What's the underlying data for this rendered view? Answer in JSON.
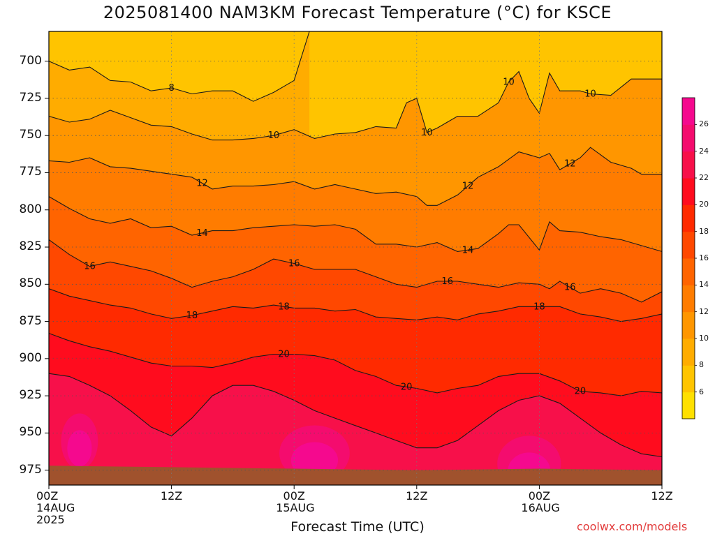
{
  "title": "2025081400 NAM3KM Forecast Temperature (°C) for KSCE",
  "credit": "coolwx.com/models",
  "chart_data": {
    "type": "heatmap",
    "title": "2025081400 NAM3KM Forecast Temperature (°C) for KSCE",
    "xlabel": "Forecast Time (UTC)",
    "ylabel": "",
    "x_range_hours": [
      0,
      60
    ],
    "y_range_hpa": [
      680,
      985
    ],
    "y_axis": "pressure (hPa), inverted",
    "grid": "dotted",
    "x_ticks": [
      {
        "hour": 0,
        "lines": [
          "00Z",
          "14AUG",
          "2025"
        ]
      },
      {
        "hour": 12,
        "lines": [
          "12Z"
        ]
      },
      {
        "hour": 24,
        "lines": [
          "00Z",
          "15AUG"
        ]
      },
      {
        "hour": 36,
        "lines": [
          "12Z"
        ]
      },
      {
        "hour": 48,
        "lines": [
          "00Z",
          "16AUG"
        ]
      },
      {
        "hour": 60,
        "lines": [
          "12Z"
        ]
      }
    ],
    "y_ticks": [
      {
        "value": 700,
        "label": "700"
      },
      {
        "value": 725,
        "label": "725"
      },
      {
        "value": 750,
        "label": "750"
      },
      {
        "value": 775,
        "label": "775"
      },
      {
        "value": 800,
        "label": "800"
      },
      {
        "value": 825,
        "label": "825"
      },
      {
        "value": 850,
        "label": "850"
      },
      {
        "value": 875,
        "label": "875"
      },
      {
        "value": 900,
        "label": "900"
      },
      {
        "value": 925,
        "label": "925"
      },
      {
        "value": 950,
        "label": "950"
      },
      {
        "value": 975,
        "label": "975"
      }
    ],
    "colorbar": {
      "levels": [
        4,
        6,
        8,
        10,
        12,
        14,
        16,
        18,
        20,
        22,
        24,
        26,
        28
      ],
      "labels": [
        "6",
        "8",
        "10",
        "12",
        "14",
        "16",
        "18",
        "20",
        "22",
        "24",
        "26"
      ],
      "colors": [
        "#ffe000",
        "#ffc400",
        "#ffac00",
        "#ff9600",
        "#ff7c00",
        "#ff6400",
        "#ff4800",
        "#ff2a00",
        "#ff0c1e",
        "#f7104a",
        "#f40c6e",
        "#f5098e"
      ]
    },
    "ground_color": "#a0522d",
    "isotherms": [
      {
        "value": 8,
        "labels": [
          {
            "label": "8",
            "hour": 12.0
          }
        ],
        "points": [
          [
            0,
            700
          ],
          [
            2,
            706
          ],
          [
            4,
            704
          ],
          [
            6,
            713
          ],
          [
            8,
            714
          ],
          [
            10,
            720
          ],
          [
            12,
            718
          ],
          [
            14,
            722
          ],
          [
            16,
            720
          ],
          [
            18,
            720
          ],
          [
            20,
            727
          ],
          [
            22,
            721
          ],
          [
            24,
            713
          ],
          [
            25.5,
            680
          ]
        ]
      },
      {
        "value": 10,
        "labels": [
          {
            "label": "10",
            "hour": 22.0
          },
          {
            "label": "10",
            "hour": 37.0
          },
          {
            "label": "10",
            "hour": 45.0
          },
          {
            "label": "10",
            "hour": 53.0
          }
        ],
        "points": [
          [
            0,
            737
          ],
          [
            2,
            741
          ],
          [
            4,
            739
          ],
          [
            6,
            733
          ],
          [
            8,
            738
          ],
          [
            10,
            743
          ],
          [
            12,
            744
          ],
          [
            14,
            749
          ],
          [
            16,
            753
          ],
          [
            18,
            753
          ],
          [
            20,
            752
          ],
          [
            22,
            750
          ],
          [
            24,
            746
          ],
          [
            26,
            752
          ],
          [
            28,
            749
          ],
          [
            30,
            748
          ],
          [
            32,
            744
          ],
          [
            34,
            745
          ],
          [
            35,
            728
          ],
          [
            36,
            725
          ],
          [
            37,
            748
          ],
          [
            38,
            745
          ],
          [
            40,
            737
          ],
          [
            42,
            737
          ],
          [
            44,
            728
          ],
          [
            45,
            714
          ],
          [
            46,
            707
          ],
          [
            47,
            725
          ],
          [
            48,
            735
          ],
          [
            49,
            708
          ],
          [
            50,
            720
          ],
          [
            52,
            720
          ],
          [
            53,
            722
          ],
          [
            55,
            723
          ],
          [
            57,
            712
          ],
          [
            60,
            712
          ]
        ]
      },
      {
        "value": 12,
        "labels": [
          {
            "label": "12",
            "hour": 15.0
          },
          {
            "label": "12",
            "hour": 41.0
          },
          {
            "label": "12",
            "hour": 51.0
          }
        ],
        "points": [
          [
            0,
            767
          ],
          [
            2,
            768
          ],
          [
            4,
            765
          ],
          [
            6,
            771
          ],
          [
            8,
            772
          ],
          [
            10,
            774
          ],
          [
            12,
            776
          ],
          [
            14,
            778
          ],
          [
            16,
            786
          ],
          [
            18,
            784
          ],
          [
            20,
            784
          ],
          [
            22,
            783
          ],
          [
            24,
            781
          ],
          [
            26,
            786
          ],
          [
            28,
            783
          ],
          [
            30,
            786
          ],
          [
            32,
            789
          ],
          [
            34,
            788
          ],
          [
            36,
            791
          ],
          [
            37,
            797
          ],
          [
            38,
            797
          ],
          [
            40,
            790
          ],
          [
            42,
            778
          ],
          [
            44,
            771
          ],
          [
            46,
            761
          ],
          [
            48,
            765
          ],
          [
            49,
            762
          ],
          [
            50,
            773
          ],
          [
            52,
            765
          ],
          [
            53,
            758
          ],
          [
            55,
            768
          ],
          [
            57,
            772
          ],
          [
            58,
            776
          ],
          [
            60,
            776
          ]
        ]
      },
      {
        "value": 14,
        "labels": [
          {
            "label": "14",
            "hour": 15.0
          },
          {
            "label": "14",
            "hour": 41.0
          }
        ],
        "points": [
          [
            0,
            791
          ],
          [
            2,
            799
          ],
          [
            4,
            806
          ],
          [
            6,
            809
          ],
          [
            8,
            806
          ],
          [
            10,
            812
          ],
          [
            12,
            811
          ],
          [
            14,
            817
          ],
          [
            16,
            814
          ],
          [
            18,
            814
          ],
          [
            20,
            812
          ],
          [
            22,
            811
          ],
          [
            24,
            810
          ],
          [
            26,
            811
          ],
          [
            28,
            810
          ],
          [
            30,
            813
          ],
          [
            32,
            823
          ],
          [
            34,
            823
          ],
          [
            36,
            825
          ],
          [
            38,
            822
          ],
          [
            40,
            828
          ],
          [
            42,
            826
          ],
          [
            44,
            816
          ],
          [
            45,
            810
          ],
          [
            46,
            810
          ],
          [
            48,
            827
          ],
          [
            49,
            808
          ],
          [
            50,
            814
          ],
          [
            52,
            815
          ],
          [
            54,
            818
          ],
          [
            56,
            820
          ],
          [
            58,
            824
          ],
          [
            60,
            828
          ]
        ]
      },
      {
        "value": 16,
        "labels": [
          {
            "label": "16",
            "hour": 4.0
          },
          {
            "label": "16",
            "hour": 24.0
          },
          {
            "label": "16",
            "hour": 39.0
          },
          {
            "label": "16",
            "hour": 51.0
          }
        ],
        "points": [
          [
            0,
            820
          ],
          [
            2,
            830
          ],
          [
            4,
            838
          ],
          [
            6,
            835
          ],
          [
            8,
            838
          ],
          [
            10,
            841
          ],
          [
            12,
            846
          ],
          [
            14,
            852
          ],
          [
            16,
            848
          ],
          [
            18,
            845
          ],
          [
            20,
            840
          ],
          [
            22,
            833
          ],
          [
            24,
            836
          ],
          [
            26,
            840
          ],
          [
            28,
            840
          ],
          [
            30,
            840
          ],
          [
            32,
            845
          ],
          [
            34,
            850
          ],
          [
            36,
            852
          ],
          [
            38,
            848
          ],
          [
            40,
            848
          ],
          [
            42,
            850
          ],
          [
            44,
            852
          ],
          [
            46,
            849
          ],
          [
            48,
            850
          ],
          [
            49,
            853
          ],
          [
            50,
            848
          ],
          [
            52,
            856
          ],
          [
            54,
            853
          ],
          [
            56,
            856
          ],
          [
            58,
            862
          ],
          [
            60,
            855
          ]
        ]
      },
      {
        "value": 18,
        "labels": [
          {
            "label": "18",
            "hour": 14.0
          },
          {
            "label": "18",
            "hour": 23.0
          },
          {
            "label": "18",
            "hour": 48.0
          }
        ],
        "points": [
          [
            0,
            853
          ],
          [
            2,
            858
          ],
          [
            4,
            861
          ],
          [
            6,
            864
          ],
          [
            8,
            866
          ],
          [
            10,
            870
          ],
          [
            12,
            873
          ],
          [
            14,
            871
          ],
          [
            16,
            868
          ],
          [
            18,
            865
          ],
          [
            20,
            866
          ],
          [
            22,
            864
          ],
          [
            24,
            866
          ],
          [
            26,
            866
          ],
          [
            28,
            868
          ],
          [
            30,
            867
          ],
          [
            32,
            872
          ],
          [
            34,
            873
          ],
          [
            36,
            874
          ],
          [
            38,
            872
          ],
          [
            40,
            874
          ],
          [
            42,
            870
          ],
          [
            44,
            868
          ],
          [
            46,
            865
          ],
          [
            48,
            865
          ],
          [
            50,
            865
          ],
          [
            52,
            870
          ],
          [
            54,
            872
          ],
          [
            56,
            875
          ],
          [
            58,
            873
          ],
          [
            60,
            870
          ]
        ]
      },
      {
        "value": 20,
        "labels": [
          {
            "label": "20",
            "hour": 23.0
          },
          {
            "label": "20",
            "hour": 35.0
          },
          {
            "label": "20",
            "hour": 52.0
          }
        ],
        "points": [
          [
            0,
            883
          ],
          [
            2,
            888
          ],
          [
            4,
            892
          ],
          [
            6,
            895
          ],
          [
            8,
            899
          ],
          [
            10,
            903
          ],
          [
            12,
            905
          ],
          [
            14,
            905
          ],
          [
            16,
            906
          ],
          [
            18,
            903
          ],
          [
            20,
            899
          ],
          [
            22,
            897
          ],
          [
            24,
            897
          ],
          [
            26,
            898
          ],
          [
            28,
            901
          ],
          [
            30,
            908
          ],
          [
            32,
            912
          ],
          [
            34,
            918
          ],
          [
            36,
            920
          ],
          [
            38,
            923
          ],
          [
            40,
            920
          ],
          [
            42,
            918
          ],
          [
            44,
            912
          ],
          [
            46,
            910
          ],
          [
            48,
            910
          ],
          [
            50,
            915
          ],
          [
            52,
            922
          ],
          [
            54,
            923
          ],
          [
            56,
            925
          ],
          [
            58,
            922
          ],
          [
            60,
            923
          ]
        ]
      },
      {
        "value": 22,
        "labels": [],
        "points": [
          [
            0,
            910
          ],
          [
            2,
            912
          ],
          [
            4,
            918
          ],
          [
            6,
            925
          ],
          [
            8,
            935
          ],
          [
            10,
            946
          ],
          [
            12,
            952
          ],
          [
            14,
            940
          ],
          [
            16,
            925
          ],
          [
            18,
            918
          ],
          [
            20,
            918
          ],
          [
            22,
            922
          ],
          [
            24,
            928
          ],
          [
            26,
            935
          ],
          [
            28,
            940
          ],
          [
            30,
            945
          ],
          [
            32,
            950
          ],
          [
            34,
            955
          ],
          [
            36,
            960
          ],
          [
            38,
            960
          ],
          [
            40,
            955
          ],
          [
            42,
            945
          ],
          [
            44,
            935
          ],
          [
            46,
            928
          ],
          [
            48,
            925
          ],
          [
            50,
            930
          ],
          [
            52,
            940
          ],
          [
            54,
            950
          ],
          [
            56,
            958
          ],
          [
            58,
            964
          ],
          [
            60,
            966
          ]
        ]
      }
    ]
  }
}
